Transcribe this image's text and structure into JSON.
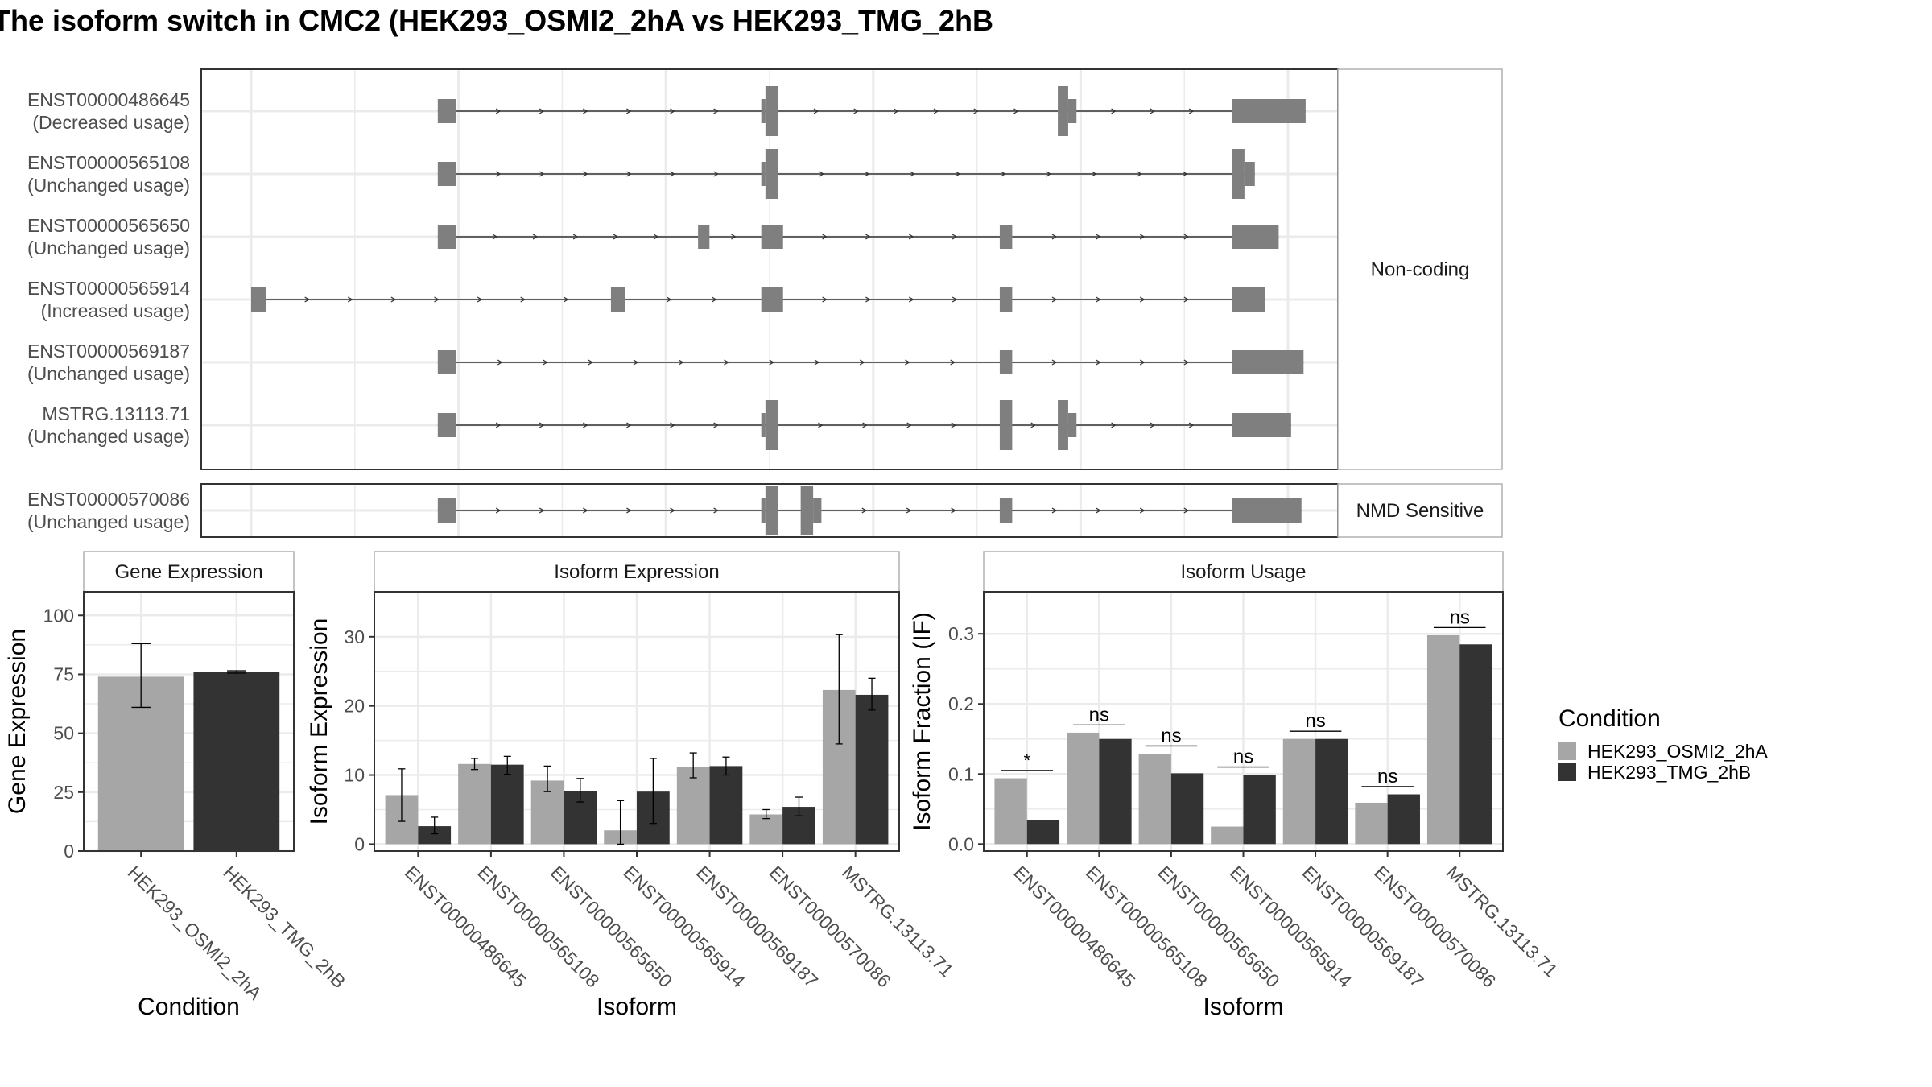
{
  "title": "The isoform switch in CMC2 (HEK293_OSMI2_2hA vs HEK293_TMG_2hB",
  "colors": {
    "cond_a": "#a6a6a6",
    "cond_b": "#333333",
    "exon": "#7f7f7f",
    "grid": "#ebebeb",
    "strip_bg": "#ffffff",
    "panel_border": "#333333",
    "text_dark": "#000000",
    "text_axis": "#4d4d4d"
  },
  "structure": {
    "coord_range": [
      0,
      1000
    ],
    "groups": [
      {
        "label": "Non-coding",
        "transcripts": [
          {
            "id": "ENST00000486645",
            "usage": "(Decreased usage)",
            "exons": [
              [
                180,
                198,
                "s"
              ],
              [
                492,
                496,
                "s"
              ],
              [
                496,
                508,
                "t"
              ],
              [
                778,
                788,
                "t"
              ],
              [
                788,
                796,
                "s"
              ],
              [
                946,
                1017,
                "s"
              ]
            ]
          },
          {
            "id": "ENST00000565108",
            "usage": "(Unchanged usage)",
            "exons": [
              [
                180,
                198,
                "s"
              ],
              [
                492,
                496,
                "s"
              ],
              [
                496,
                508,
                "t"
              ],
              [
                946,
                958,
                "t"
              ],
              [
                958,
                968,
                "s"
              ]
            ]
          },
          {
            "id": "ENST00000565650",
            "usage": "(Unchanged usage)",
            "exons": [
              [
                180,
                198,
                "s"
              ],
              [
                431,
                442,
                "s"
              ],
              [
                492,
                513,
                "s"
              ],
              [
                722,
                734,
                "s"
              ],
              [
                946,
                991,
                "s"
              ]
            ]
          },
          {
            "id": "ENST00000565914",
            "usage": "(Increased usage)",
            "exons": [
              [
                0,
                14,
                "s"
              ],
              [
                347,
                361,
                "s"
              ],
              [
                492,
                513,
                "s"
              ],
              [
                722,
                734,
                "s"
              ],
              [
                946,
                978,
                "s"
              ]
            ]
          },
          {
            "id": "ENST00000569187",
            "usage": "(Unchanged usage)",
            "exons": [
              [
                180,
                198,
                "s"
              ],
              [
                722,
                734,
                "s"
              ],
              [
                946,
                1015,
                "s"
              ]
            ]
          },
          {
            "id": "MSTRG.13113.71",
            "usage": "(Unchanged usage)",
            "exons": [
              [
                180,
                198,
                "s"
              ],
              [
                492,
                496,
                "s"
              ],
              [
                496,
                508,
                "t"
              ],
              [
                722,
                734,
                "t"
              ],
              [
                778,
                788,
                "t"
              ],
              [
                788,
                796,
                "s"
              ],
              [
                946,
                1003,
                "s"
              ]
            ]
          }
        ]
      },
      {
        "label": "NMD Sensitive",
        "transcripts": [
          {
            "id": "ENST00000570086",
            "usage": "(Unchanged usage)",
            "exons": [
              [
                180,
                198,
                "s"
              ],
              [
                492,
                496,
                "s"
              ],
              [
                496,
                508,
                "t"
              ],
              [
                530,
                542,
                "t"
              ],
              [
                542,
                550,
                "s"
              ],
              [
                722,
                734,
                "s"
              ],
              [
                946,
                1013,
                "s"
              ]
            ]
          }
        ]
      }
    ]
  },
  "legend": {
    "title": "Condition",
    "items": [
      "HEK293_OSMI2_2hA",
      "HEK293_TMG_2hB"
    ]
  },
  "chart_data": [
    {
      "type": "bar",
      "title": "Gene Expression",
      "xlabel": "Condition",
      "ylabel": "Gene Expression",
      "categories": [
        "HEK293_OSMI2_2hA",
        "HEK293_TMG_2hB"
      ],
      "values": [
        74,
        76
      ],
      "errors": [
        [
          61,
          88
        ],
        [
          75.5,
          76.5
        ]
      ],
      "ylim": [
        0,
        110
      ],
      "yticks": [
        0,
        25,
        50,
        75,
        100
      ]
    },
    {
      "type": "bar",
      "title": "Isoform Expression",
      "xlabel": "Isoform",
      "ylabel": "Isoform Expression",
      "categories": [
        "ENST00000486645",
        "ENST00000565108",
        "ENST00000565650",
        "ENST00000565914",
        "ENST00000569187",
        "ENST00000570086",
        "MSTRG.13113.71"
      ],
      "series": [
        {
          "name": "HEK293_OSMI2_2hA",
          "values": [
            7.1,
            11.6,
            9.2,
            2.0,
            11.2,
            4.3,
            22.3
          ],
          "errors": [
            [
              3.3,
              10.9
            ],
            [
              10.8,
              12.4
            ],
            [
              7.6,
              11.3
            ],
            [
              0,
              6.3
            ],
            [
              9.6,
              13.2
            ],
            [
              3.7,
              5.0
            ],
            [
              14.5,
              30.3
            ]
          ]
        },
        {
          "name": "HEK293_TMG_2hB",
          "values": [
            2.6,
            11.5,
            7.7,
            7.6,
            11.3,
            5.4,
            21.6
          ],
          "errors": [
            [
              1.5,
              3.9
            ],
            [
              10.1,
              12.7
            ],
            [
              6.1,
              9.5
            ],
            [
              3.0,
              12.4
            ],
            [
              10.0,
              12.6
            ],
            [
              4.1,
              6.8
            ],
            [
              19.4,
              24.0
            ]
          ]
        }
      ],
      "ylim": [
        -1,
        36.5
      ],
      "yticks": [
        0,
        10,
        20,
        30
      ]
    },
    {
      "type": "bar",
      "title": "Isoform Usage",
      "xlabel": "Isoform",
      "ylabel": "Isoform Fraction (IF)",
      "categories": [
        "ENST00000486645",
        "ENST00000565108",
        "ENST00000565650",
        "ENST00000565914",
        "ENST00000569187",
        "ENST00000570086",
        "MSTRG.13113.71"
      ],
      "series": [
        {
          "name": "HEK293_OSMI2_2hA",
          "values": [
            0.094,
            0.159,
            0.129,
            0.025,
            0.15,
            0.059,
            0.298
          ]
        },
        {
          "name": "HEK293_TMG_2hB",
          "values": [
            0.034,
            0.15,
            0.101,
            0.099,
            0.15,
            0.071,
            0.285
          ]
        }
      ],
      "significance": [
        "*",
        "ns",
        "ns",
        "ns",
        "ns",
        "ns",
        "ns"
      ],
      "ylim": [
        -0.01,
        0.36
      ],
      "yticks": [
        0.0,
        0.1,
        0.2,
        0.3
      ],
      "ytick_labels": [
        "0.0",
        "0.1",
        "0.2",
        "0.3"
      ]
    }
  ]
}
